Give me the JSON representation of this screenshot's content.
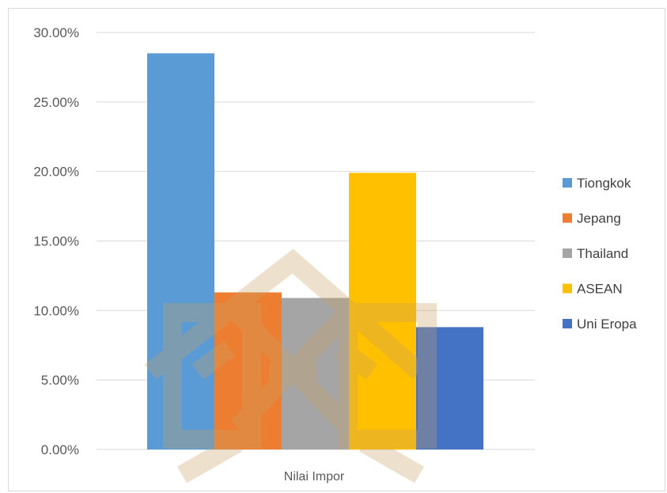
{
  "chart_data": {
    "type": "bar",
    "categories": [
      "Nilai Impor"
    ],
    "series": [
      {
        "name": "Tiongkok",
        "values": [
          28.5
        ],
        "color": "#5b9bd5"
      },
      {
        "name": "Jepang",
        "values": [
          11.3
        ],
        "color": "#ed7d31"
      },
      {
        "name": "Thailand",
        "values": [
          10.9
        ],
        "color": "#a5a5a5"
      },
      {
        "name": "ASEAN",
        "values": [
          19.9
        ],
        "color": "#ffc000"
      },
      {
        "name": "Uni Eropa",
        "values": [
          8.8
        ],
        "color": "#4472c4"
      }
    ],
    "ylim": [
      0,
      30
    ],
    "yticks": [
      "0.00%",
      "5.00%",
      "10.00%",
      "15.00%",
      "20.00%",
      "25.00%",
      "30.00%"
    ],
    "ytick_values": [
      0,
      5,
      10,
      15,
      20,
      25,
      30
    ],
    "grid": true,
    "legend_position": "right",
    "watermark": "decorative geometric logo"
  }
}
